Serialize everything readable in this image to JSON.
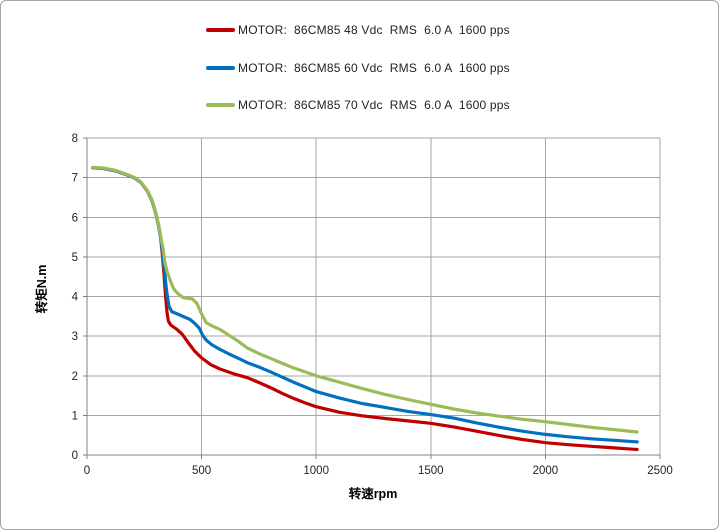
{
  "frame": {
    "background": "#ffffff",
    "border_color": "#a6a6a6"
  },
  "colors": {
    "series_red": "#c00000",
    "series_blue": "#0070c0",
    "series_green": "#9bbb59",
    "gridline": "#a6a6a6",
    "axis": "#808080",
    "text": "#1f1f1f"
  },
  "chart_data": {
    "type": "line",
    "title": "",
    "xlabel": "转速rpm",
    "ylabel": "转矩N.m",
    "xlim": [
      0,
      2500
    ],
    "ylim": [
      0,
      8
    ],
    "x_ticks": [
      0,
      500,
      1000,
      1500,
      2000,
      2500
    ],
    "y_ticks": [
      0,
      1,
      2,
      3,
      4,
      5,
      6,
      7,
      8
    ],
    "grid": true,
    "legend_position": "top-center",
    "series": [
      {
        "id": "48vdc",
        "name": "MOTOR:  86CM85 48 Vdc  RMS  6.0 A  1600 pps",
        "color": "#c00000",
        "points": [
          [
            25,
            7.25
          ],
          [
            75,
            7.23
          ],
          [
            125,
            7.17
          ],
          [
            175,
            7.07
          ],
          [
            205,
            7.0
          ],
          [
            235,
            6.88
          ],
          [
            265,
            6.65
          ],
          [
            285,
            6.4
          ],
          [
            300,
            6.1
          ],
          [
            312,
            5.8
          ],
          [
            322,
            5.45
          ],
          [
            330,
            5.0
          ],
          [
            337,
            4.5
          ],
          [
            343,
            4.0
          ],
          [
            349,
            3.6
          ],
          [
            355,
            3.38
          ],
          [
            365,
            3.28
          ],
          [
            390,
            3.18
          ],
          [
            415,
            3.05
          ],
          [
            440,
            2.85
          ],
          [
            470,
            2.62
          ],
          [
            500,
            2.45
          ],
          [
            540,
            2.28
          ],
          [
            580,
            2.17
          ],
          [
            640,
            2.05
          ],
          [
            700,
            1.95
          ],
          [
            750,
            1.83
          ],
          [
            800,
            1.7
          ],
          [
            850,
            1.56
          ],
          [
            900,
            1.43
          ],
          [
            950,
            1.32
          ],
          [
            1000,
            1.22
          ],
          [
            1100,
            1.08
          ],
          [
            1200,
            0.99
          ],
          [
            1300,
            0.92
          ],
          [
            1400,
            0.86
          ],
          [
            1500,
            0.8
          ],
          [
            1600,
            0.71
          ],
          [
            1700,
            0.6
          ],
          [
            1800,
            0.49
          ],
          [
            1900,
            0.39
          ],
          [
            2000,
            0.31
          ],
          [
            2100,
            0.26
          ],
          [
            2200,
            0.22
          ],
          [
            2300,
            0.18
          ],
          [
            2400,
            0.14
          ]
        ]
      },
      {
        "id": "60vdc",
        "name": "MOTOR:  86CM85 60 Vdc  RMS  6.0 A  1600 pps",
        "color": "#0070c0",
        "points": [
          [
            25,
            7.25
          ],
          [
            75,
            7.23
          ],
          [
            125,
            7.17
          ],
          [
            175,
            7.07
          ],
          [
            205,
            7.0
          ],
          [
            235,
            6.88
          ],
          [
            265,
            6.65
          ],
          [
            285,
            6.4
          ],
          [
            300,
            6.1
          ],
          [
            312,
            5.8
          ],
          [
            322,
            5.45
          ],
          [
            330,
            5.1
          ],
          [
            338,
            4.65
          ],
          [
            346,
            4.2
          ],
          [
            352,
            3.95
          ],
          [
            358,
            3.75
          ],
          [
            370,
            3.62
          ],
          [
            410,
            3.52
          ],
          [
            450,
            3.42
          ],
          [
            470,
            3.32
          ],
          [
            490,
            3.2
          ],
          [
            505,
            3.02
          ],
          [
            520,
            2.9
          ],
          [
            545,
            2.78
          ],
          [
            575,
            2.68
          ],
          [
            620,
            2.55
          ],
          [
            660,
            2.44
          ],
          [
            700,
            2.33
          ],
          [
            750,
            2.22
          ],
          [
            800,
            2.1
          ],
          [
            850,
            1.97
          ],
          [
            900,
            1.84
          ],
          [
            950,
            1.72
          ],
          [
            1000,
            1.6
          ],
          [
            1100,
            1.44
          ],
          [
            1200,
            1.3
          ],
          [
            1300,
            1.2
          ],
          [
            1400,
            1.1
          ],
          [
            1500,
            1.02
          ],
          [
            1600,
            0.93
          ],
          [
            1700,
            0.81
          ],
          [
            1800,
            0.7
          ],
          [
            1900,
            0.6
          ],
          [
            2000,
            0.52
          ],
          [
            2100,
            0.46
          ],
          [
            2200,
            0.41
          ],
          [
            2300,
            0.37
          ],
          [
            2400,
            0.33
          ]
        ]
      },
      {
        "id": "70vdc",
        "name": "MOTOR:  86CM85 70 Vdc  RMS  6.0 A  1600 pps",
        "color": "#9bbb59",
        "points": [
          [
            25,
            7.26
          ],
          [
            75,
            7.24
          ],
          [
            125,
            7.18
          ],
          [
            175,
            7.08
          ],
          [
            205,
            7.01
          ],
          [
            235,
            6.89
          ],
          [
            265,
            6.66
          ],
          [
            285,
            6.42
          ],
          [
            300,
            6.12
          ],
          [
            312,
            5.83
          ],
          [
            322,
            5.5
          ],
          [
            332,
            5.2
          ],
          [
            340,
            4.85
          ],
          [
            350,
            4.62
          ],
          [
            362,
            4.42
          ],
          [
            378,
            4.2
          ],
          [
            395,
            4.08
          ],
          [
            420,
            3.97
          ],
          [
            460,
            3.94
          ],
          [
            480,
            3.82
          ],
          [
            500,
            3.56
          ],
          [
            520,
            3.34
          ],
          [
            545,
            3.26
          ],
          [
            580,
            3.17
          ],
          [
            620,
            3.02
          ],
          [
            660,
            2.87
          ],
          [
            700,
            2.7
          ],
          [
            750,
            2.56
          ],
          [
            800,
            2.44
          ],
          [
            850,
            2.32
          ],
          [
            900,
            2.2
          ],
          [
            950,
            2.1
          ],
          [
            1000,
            2.0
          ],
          [
            1100,
            1.84
          ],
          [
            1200,
            1.68
          ],
          [
            1300,
            1.53
          ],
          [
            1400,
            1.4
          ],
          [
            1500,
            1.28
          ],
          [
            1600,
            1.16
          ],
          [
            1700,
            1.06
          ],
          [
            1800,
            0.98
          ],
          [
            1900,
            0.9
          ],
          [
            2000,
            0.84
          ],
          [
            2100,
            0.77
          ],
          [
            2200,
            0.7
          ],
          [
            2300,
            0.64
          ],
          [
            2400,
            0.58
          ]
        ]
      }
    ]
  }
}
